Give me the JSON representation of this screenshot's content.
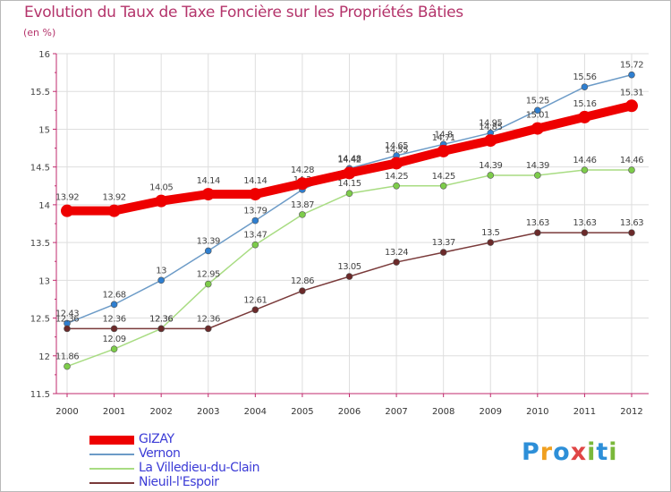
{
  "chart_data": {
    "type": "line",
    "title": "Evolution du Taux de Taxe Foncière sur les Propriétés Bâties",
    "unit_label": "(en %)",
    "x": [
      "2000",
      "2001",
      "2002",
      "2003",
      "2004",
      "2005",
      "2006",
      "2007",
      "2008",
      "2009",
      "2010",
      "2011",
      "2012"
    ],
    "ylim": [
      11.5,
      16
    ],
    "yticks": [
      "11.5",
      "12",
      "12.5",
      "13",
      "13.5",
      "14",
      "14.5",
      "15",
      "15.5",
      "16"
    ],
    "ytick_values": [
      11.5,
      12,
      12.5,
      13,
      13.5,
      14,
      14.5,
      15,
      15.5,
      16
    ],
    "grid": true,
    "series": [
      {
        "name": "Vernon",
        "color": "#6c9bc7",
        "point_color": "#2f7fd0",
        "values": [
          12.43,
          12.68,
          13,
          13.39,
          13.79,
          14.2,
          14.48,
          14.65,
          14.8,
          14.95,
          15.25,
          15.56,
          15.72
        ],
        "labels": [
          "12.43",
          "12.68",
          "13",
          "13.39",
          "13.79",
          "14.2",
          "14.48",
          "14.65",
          "14.8",
          "14.95",
          "15.25",
          "15.56",
          "15.72"
        ]
      },
      {
        "name": "La Villedieu-du-Clain",
        "color": "#a8dc82",
        "point_color": "#7dcc4a",
        "values": [
          11.86,
          12.09,
          12.36,
          12.95,
          13.47,
          13.87,
          14.15,
          14.25,
          14.25,
          14.39,
          14.39,
          14.46,
          14.46
        ],
        "labels": [
          "11.86",
          "12.09",
          "12.36",
          "12.95",
          "13.47",
          "13.87",
          "14.15",
          "14.25",
          "14.25",
          "14.39",
          "14.39",
          "14.46",
          "14.46"
        ]
      },
      {
        "name": "Nieuil-l'Espoir",
        "color": "#7a3a3a",
        "point_color": "#6b2a2a",
        "values": [
          12.36,
          12.36,
          12.36,
          12.36,
          12.61,
          12.86,
          13.05,
          13.24,
          13.37,
          13.5,
          13.63,
          13.63,
          13.63
        ],
        "labels": [
          "12.36",
          "12.36",
          "12.36",
          "12.36",
          "12.61",
          "12.86",
          "13.05",
          "13.24",
          "13.37",
          "13.5",
          "13.63",
          "13.63",
          "13.63"
        ]
      },
      {
        "name": "GIZAY",
        "color": "#ee0000",
        "point_color": "#ee0000",
        "values": [
          13.92,
          13.92,
          14.05,
          14.14,
          14.14,
          14.28,
          14.42,
          14.55,
          14.71,
          14.85,
          15.01,
          15.16,
          15.31
        ],
        "labels": [
          "13.92",
          "13.92",
          "14.05",
          "14.14",
          "14.14",
          "14.28",
          "14.42",
          "14.55",
          "14.71",
          "14.85",
          "15.01",
          "15.16",
          "15.31"
        ]
      }
    ]
  },
  "legend": {
    "items": [
      {
        "name": "GIZAY",
        "color": "#ee0000"
      },
      {
        "name": "Vernon",
        "color": "#6c9bc7"
      },
      {
        "name": "La Villedieu-du-Clain",
        "color": "#a8dc82"
      },
      {
        "name": "Nieuil-l'Espoir",
        "color": "#7a3a3a"
      }
    ]
  },
  "brand": {
    "letters": [
      "P",
      "r",
      "o",
      "x",
      "i",
      "t",
      "i"
    ],
    "colors": [
      "#2d8fd8",
      "#f0a020",
      "#2d8fd8",
      "#e04545",
      "#7ab83a",
      "#2d8fd8",
      "#7ab83a"
    ]
  }
}
